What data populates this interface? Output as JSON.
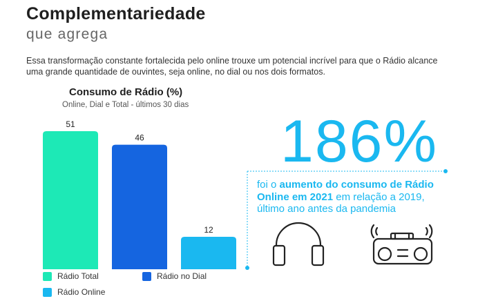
{
  "header": {
    "title": "Complementariedade",
    "subtitle": "que agrega",
    "intro": "Essa transformação constante fortalecida pelo online trouxe um potencial incrível para que o Rádio alcance uma grande quantidade de ouvintes, seja online, no dial ou nos dois formatos."
  },
  "chart_data": {
    "type": "bar",
    "title": "Consumo de Rádio (%)",
    "subtitle": "Online, Dial e Total - últimos 30 dias",
    "categories": [
      "Rádio Total",
      "Rádio no Dial",
      "Rádio Online"
    ],
    "values": [
      51,
      46,
      12
    ],
    "colors": [
      "#1de9b6",
      "#1565e0",
      "#1ab8f0"
    ],
    "value_labels": [
      "51",
      "46",
      "12"
    ],
    "ylim": [
      0,
      60
    ],
    "grid": false,
    "legend": "bottom"
  },
  "callout": {
    "big_number": "186%",
    "text_before": "foi o ",
    "highlight": "aumento do consumo de Rádio Online em 2021",
    "text_after": " em relação a 2019, último ano antes da pandemia",
    "accent_color": "#1ab8f0"
  },
  "icons": [
    "headphones-icon",
    "radio-icon"
  ]
}
